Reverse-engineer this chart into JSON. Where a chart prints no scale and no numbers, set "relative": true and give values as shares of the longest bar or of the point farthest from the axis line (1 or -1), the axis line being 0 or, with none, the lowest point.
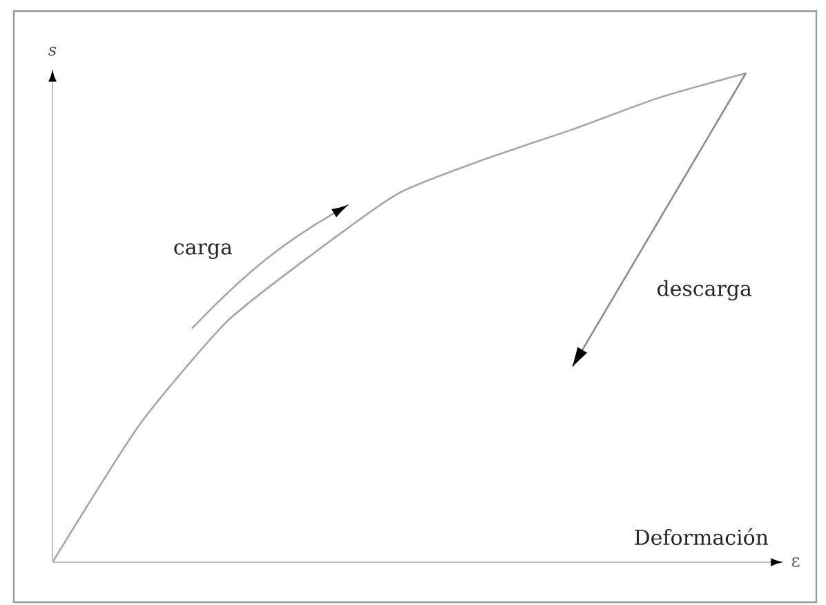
{
  "chart_data": {
    "type": "line",
    "relative": true,
    "xlabel": "ε",
    "ylabel": "s",
    "marker": "none",
    "line_style": "solid",
    "annotations": [
      "carga",
      "descarga",
      "Deformación"
    ],
    "categories": [
      null,
      null,
      null,
      null,
      null,
      null,
      null,
      null,
      null
    ],
    "series": [
      {
        "color": "#a6a6a6",
        "values": [
          0,
          0.28,
          0.49,
          0.63,
          0.755,
          0.825,
          0.885,
          0.95,
          1
        ]
      },
      {
        "color": "#8c8c8c",
        "values": [
          null,
          null,
          null,
          null,
          null,
          null,
          0.4,
          null,
          1
        ]
      }
    ]
  }
}
